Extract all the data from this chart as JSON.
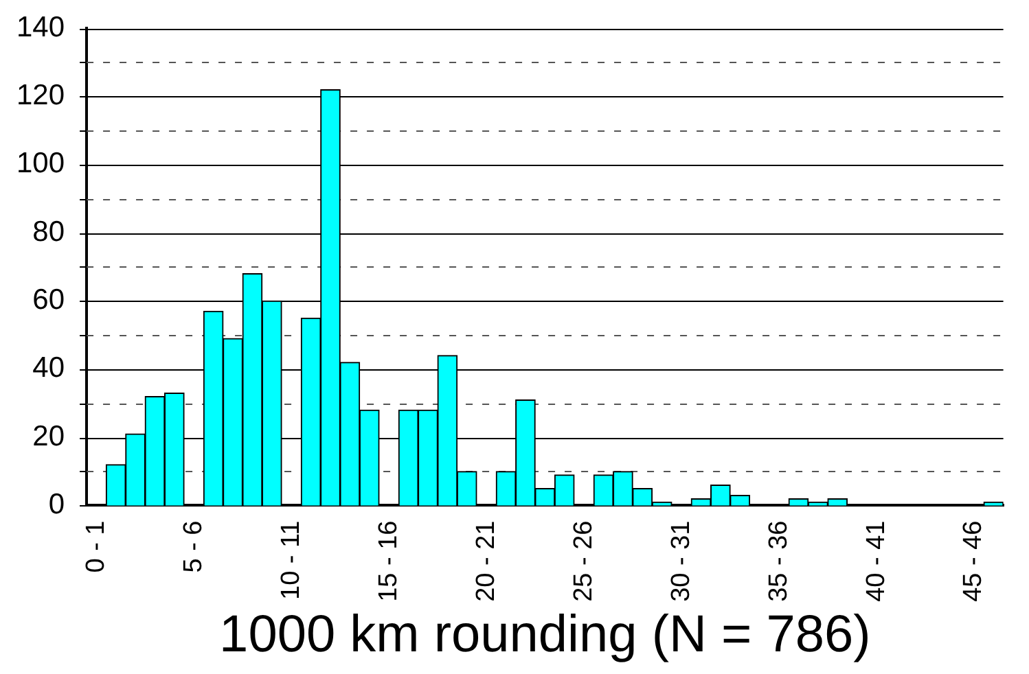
{
  "chart_data": {
    "type": "bar",
    "xlabel": "1000 km rounding (N = 786)",
    "categories": [
      "0 - 1",
      null,
      null,
      null,
      null,
      "5 - 6",
      null,
      null,
      null,
      null,
      "10 - 11",
      null,
      null,
      null,
      null,
      "15 - 16",
      null,
      null,
      null,
      null,
      "20 - 21",
      null,
      null,
      null,
      null,
      "25 - 26",
      null,
      null,
      null,
      null,
      "30 - 31",
      null,
      null,
      null,
      null,
      "35 - 36",
      null,
      null,
      null,
      null,
      "40 - 41",
      null,
      null,
      null,
      null,
      "45 - 46",
      null
    ],
    "values": [
      0,
      12,
      21,
      32,
      33,
      0,
      57,
      49,
      68,
      60,
      0,
      55,
      122,
      42,
      28,
      0,
      28,
      28,
      44,
      10,
      0,
      10,
      31,
      5,
      9,
      0,
      9,
      10,
      5,
      1,
      0,
      2,
      6,
      3,
      0,
      0,
      2,
      1,
      2,
      0,
      0,
      0,
      0,
      0,
      0,
      0,
      1
    ],
    "color": "#00ffff",
    "ylim": [
      0,
      140
    ],
    "yticks": [
      0,
      {
        "value": 10,
        "label": null
      },
      20,
      {
        "value": 30,
        "label": null
      },
      40,
      {
        "value": 50,
        "label": null
      },
      60,
      {
        "value": 70,
        "label": null
      },
      80,
      {
        "value": 90,
        "label": null
      },
      100,
      {
        "value": 110,
        "label": null
      },
      120,
      {
        "value": 130,
        "label": null
      },
      140
    ],
    "grid": "y",
    "legend": false
  }
}
